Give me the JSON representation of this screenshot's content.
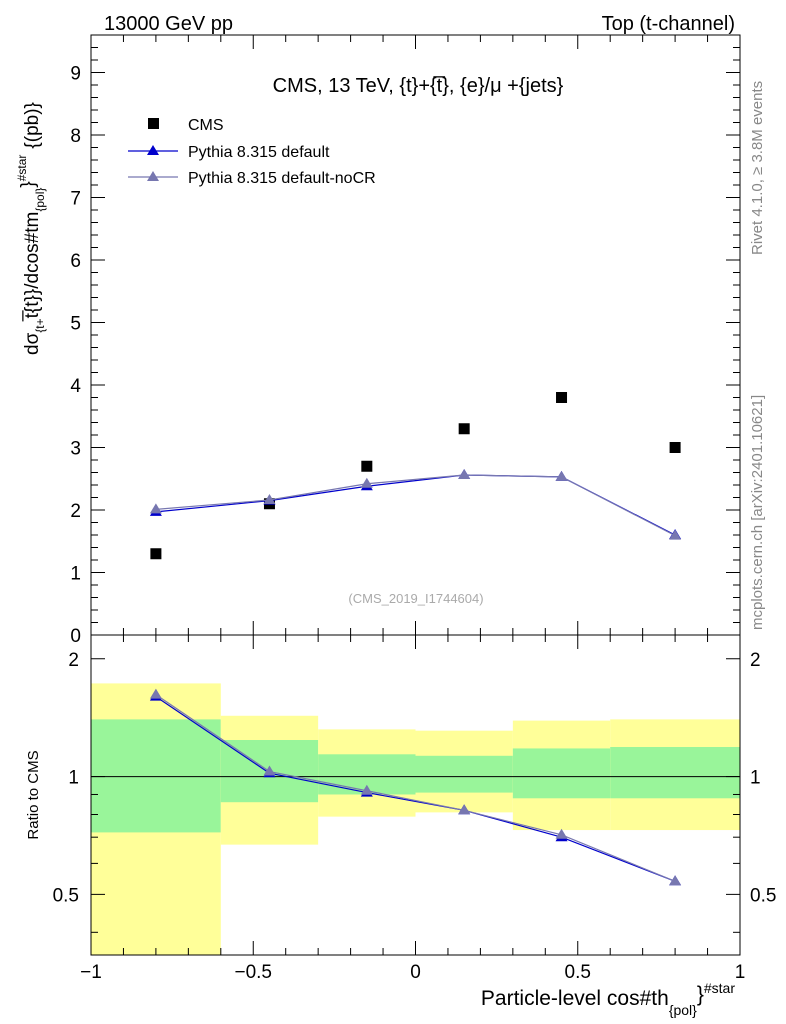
{
  "header": {
    "left": "13000 GeV pp",
    "right": "Top (t-channel)"
  },
  "side_labels": {
    "rivet": "Rivet 4.1.0, ≥ 3.8M events",
    "mcplots": "mcplots.cern.ch [arXiv:2401.10621]"
  },
  "chart_data": [
    {
      "type": "scatter",
      "panel": "main",
      "title": "CMS, 13 TeV, {t}+{t̅}, {e}/μ +{jets}",
      "analysis_id": "(CMS_2019_I1744604)",
      "ylabel_parts": {
        "d": "dσ",
        "sub1": "{t+",
        "t1": "t̅",
        "mid": "{t}}/dcos#tm",
        "sub2": "{pol}",
        "sup": "}",
        "sup2": "#star",
        "unit": "{(pb)}"
      },
      "ylim": [
        0,
        9.6
      ],
      "yticks": [
        0,
        1,
        2,
        3,
        4,
        5,
        6,
        7,
        8,
        9
      ],
      "xlim": [
        -1.0,
        1.0
      ],
      "legend": [
        {
          "label": "CMS",
          "color": "#000000",
          "marker": "square"
        },
        {
          "label": "Pythia 8.315 default",
          "color": "#0000cc",
          "marker": "triangle"
        },
        {
          "label": "Pythia 8.315 default-noCR",
          "color": "#7777b0",
          "marker": "triangle"
        }
      ],
      "series": [
        {
          "name": "CMS",
          "color": "#000000",
          "x": [
            -0.8,
            -0.45,
            -0.15,
            0.15,
            0.45,
            0.8
          ],
          "values": [
            1.3,
            2.1,
            2.7,
            3.3,
            3.8,
            3.0
          ]
        },
        {
          "name": "Pythia 8.315 default",
          "color": "#0000cc",
          "x": [
            -0.8,
            -0.45,
            -0.15,
            0.15,
            0.45,
            0.8
          ],
          "values": [
            1.97,
            2.15,
            2.38,
            2.56,
            2.53,
            1.6
          ]
        },
        {
          "name": "Pythia 8.315 default-noCR",
          "color": "#7777b0",
          "x": [
            -0.8,
            -0.45,
            -0.15,
            0.15,
            0.45,
            0.8
          ],
          "values": [
            2.01,
            2.16,
            2.42,
            2.56,
            2.53,
            1.59
          ]
        }
      ]
    },
    {
      "type": "line",
      "panel": "ratio",
      "ylabel": "Ratio to CMS",
      "xlabel_parts": {
        "main": "Particle-level cos#th",
        "sub": "{pol}",
        "sup": "}",
        "sup2": "#star"
      },
      "ylim": [
        0.35,
        2.3
      ],
      "yticks": [
        0.5,
        1,
        2
      ],
      "ytick_labels": [
        "0.5",
        "1",
        "2"
      ],
      "xlim": [
        -1.0,
        1.0
      ],
      "xticks": [
        -1,
        -0.5,
        0,
        0.5,
        1
      ],
      "xtick_labels": [
        "−1",
        "−0.5",
        "0",
        "0.5",
        "1"
      ],
      "reference_line": 1.0,
      "bands": [
        {
          "x0": -1.0,
          "x1": -0.6,
          "inner": [
            0.72,
            1.4
          ],
          "outer": [
            0.3,
            1.73
          ]
        },
        {
          "x0": -0.6,
          "x1": -0.3,
          "inner": [
            0.86,
            1.24
          ],
          "outer": [
            0.67,
            1.43
          ]
        },
        {
          "x0": -0.3,
          "x1": 0.0,
          "inner": [
            0.9,
            1.14
          ],
          "outer": [
            0.79,
            1.32
          ]
        },
        {
          "x0": 0.0,
          "x1": 0.3,
          "inner": [
            0.91,
            1.13
          ],
          "outer": [
            0.81,
            1.31
          ]
        },
        {
          "x0": 0.3,
          "x1": 0.6,
          "inner": [
            0.88,
            1.18
          ],
          "outer": [
            0.73,
            1.39
          ]
        },
        {
          "x0": 0.6,
          "x1": 1.0,
          "inner": [
            0.88,
            1.19
          ],
          "outer": [
            0.73,
            1.4
          ]
        }
      ],
      "band_colors": {
        "inner": "#99f59a",
        "outer": "#ffff99"
      },
      "series": [
        {
          "name": "Pythia 8.315 default",
          "color": "#0000cc",
          "x": [
            -0.8,
            -0.45,
            -0.15,
            0.15,
            0.45,
            0.8
          ],
          "values": [
            1.6,
            1.02,
            0.91,
            0.82,
            0.7,
            0.54
          ]
        },
        {
          "name": "Pythia 8.315 default-noCR",
          "color": "#7777b0",
          "x": [
            -0.8,
            -0.45,
            -0.15,
            0.15,
            0.45,
            0.8
          ],
          "values": [
            1.62,
            1.03,
            0.92,
            0.82,
            0.71,
            0.54
          ]
        }
      ]
    }
  ]
}
